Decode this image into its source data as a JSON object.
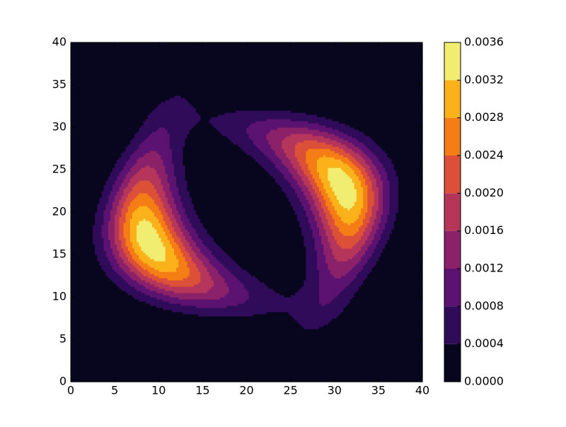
{
  "chart_data": {
    "type": "contourf",
    "xlim": [
      0,
      40
    ],
    "ylim": [
      0,
      40
    ],
    "xticks": [
      0,
      5,
      10,
      15,
      20,
      25,
      30,
      35,
      40
    ],
    "yticks": [
      0,
      5,
      10,
      15,
      20,
      25,
      30,
      35,
      40
    ],
    "levels": [
      {
        "value": 0,
        "label": "0.0000"
      },
      0.0004,
      0.0008,
      0.0012,
      0.0016,
      {
        "value": 0.002,
        "label": "0.0020"
      },
      0.0024,
      0.0028,
      0.0032,
      0.0036
    ],
    "colors": [
      "#08061f",
      "#300b5a",
      "#5b1270",
      "#8b2269",
      "#b5365a",
      "#dc5039",
      "#f57d15",
      "#fbb21a",
      "#f1ed71"
    ]
  }
}
